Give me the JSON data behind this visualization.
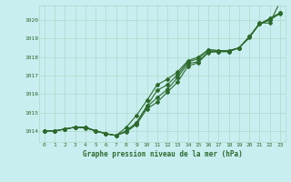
{
  "bg_color": "#c8eef0",
  "grid_color": "#b0d8c8",
  "line_color": "#2d6a2d",
  "marker_color": "#2d6a2d",
  "title": "Graphe pression niveau de la mer (hPa)",
  "yticks": [
    1014,
    1015,
    1016,
    1017,
    1018,
    1019,
    1020
  ],
  "ylim": [
    1013.4,
    1020.8
  ],
  "xlim": [
    -0.5,
    23.5
  ],
  "series1": [
    1014.0,
    1014.0,
    1014.1,
    1014.2,
    1014.15,
    1014.0,
    1013.85,
    1013.75,
    1013.95,
    1014.35,
    1015.2,
    1015.55,
    1016.1,
    1016.65,
    1017.5,
    1017.7,
    1018.25,
    1018.3,
    1018.3,
    1018.5,
    1019.05,
    1019.8,
    1020.05,
    1020.35
  ],
  "series2": [
    1014.0,
    1014.0,
    1014.1,
    1014.2,
    1014.2,
    1014.0,
    1013.85,
    1013.75,
    1014.0,
    1014.45,
    1015.3,
    1015.8,
    1016.25,
    1016.9,
    1017.65,
    1017.75,
    1018.3,
    1018.3,
    1018.3,
    1018.5,
    1019.1,
    1019.8,
    1020.1,
    1020.4
  ],
  "series3": [
    1014.0,
    1014.0,
    1014.1,
    1014.2,
    1014.2,
    1014.0,
    1013.85,
    1013.75,
    1014.0,
    1014.45,
    1015.35,
    1016.2,
    1016.5,
    1017.05,
    1017.75,
    1017.9,
    1018.4,
    1018.35,
    1018.35,
    1018.5,
    1019.1,
    1019.8,
    1020.0,
    1020.4
  ],
  "series4": [
    1014.0,
    1014.0,
    1014.1,
    1014.2,
    1014.2,
    1014.0,
    1013.85,
    1013.75,
    1014.2,
    1014.85,
    1015.65,
    1016.5,
    1016.8,
    1017.2,
    1017.8,
    1018.0,
    1018.4,
    1018.35,
    1018.35,
    1018.5,
    1019.1,
    1019.85,
    1019.85,
    1021.0
  ]
}
